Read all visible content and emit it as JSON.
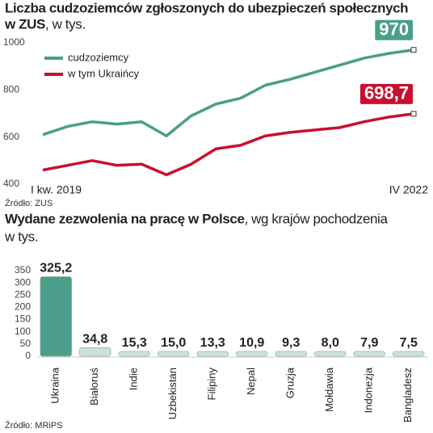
{
  "chart_data": [
    {
      "type": "line",
      "title": [
        "Liczba cudzoziemców zgłoszonych do ubezpieczeń społecznych",
        "w ZUS"
      ],
      "subtitle": ", w tys.",
      "categories": [
        "I kw. 2019",
        null,
        null,
        null,
        null,
        null,
        null,
        null,
        null,
        null,
        null,
        null,
        null,
        null,
        null,
        "IV 2022"
      ],
      "series": [
        {
          "name": "cudzoziemcy",
          "color": "#4a9e8a",
          "values": [
            610,
            645,
            665,
            655,
            665,
            605,
            690,
            740,
            765,
            820,
            845,
            875,
            905,
            935,
            955,
            970
          ],
          "value_labels": [
            null,
            null,
            null,
            null,
            null,
            null,
            null,
            null,
            null,
            null,
            null,
            null,
            null,
            null,
            null,
            "970"
          ]
        },
        {
          "name": "w tym Ukraińcy",
          "color": "#c8102e",
          "values": [
            460,
            480,
            500,
            480,
            485,
            440,
            485,
            550,
            565,
            605,
            620,
            630,
            640,
            665,
            685,
            698.7
          ],
          "value_labels": [
            null,
            null,
            null,
            null,
            null,
            null,
            null,
            null,
            null,
            null,
            null,
            null,
            null,
            null,
            null,
            "698,7"
          ]
        }
      ],
      "ylim": [
        400,
        1000
      ],
      "yticks": [
        400,
        600,
        800,
        1000
      ],
      "grid": false,
      "legend": "top-left",
      "source": "Źródło: ZUS"
    },
    {
      "type": "bar",
      "title": "Wydane zezwolenia na pracę w Polsce",
      "subtitle": ", wg krajów pochodzenia",
      "unit": "w tys.",
      "categories": [
        "Ukraina",
        "Białoruś",
        "Indie",
        "Uzbekistan",
        "Filipiny",
        "Nepal",
        "Gruzja",
        "Mołdawia",
        "Indonezja",
        "Bangladesz"
      ],
      "values": [
        325.2,
        34.8,
        15.3,
        15.0,
        13.3,
        10.9,
        9.3,
        8.0,
        7.9,
        7.5
      ],
      "value_labels": [
        "325,2",
        "34,8",
        "15,3",
        "15,0",
        "13,3",
        "10,9",
        "9,3",
        "8,0",
        "7,9",
        "7,5"
      ],
      "colors": [
        "#4a9e8a",
        "#c9e3da",
        "#c9e3da",
        "#c9e3da",
        "#c9e3da",
        "#c9e3da",
        "#c9e3da",
        "#c9e3da",
        "#c9e3da",
        "#c9e3da"
      ],
      "ylim": [
        0,
        350
      ],
      "yticks": [
        0,
        50,
        100,
        150,
        200,
        250,
        300,
        350
      ],
      "grid": false,
      "source": "Źródło: MRiPS"
    }
  ]
}
